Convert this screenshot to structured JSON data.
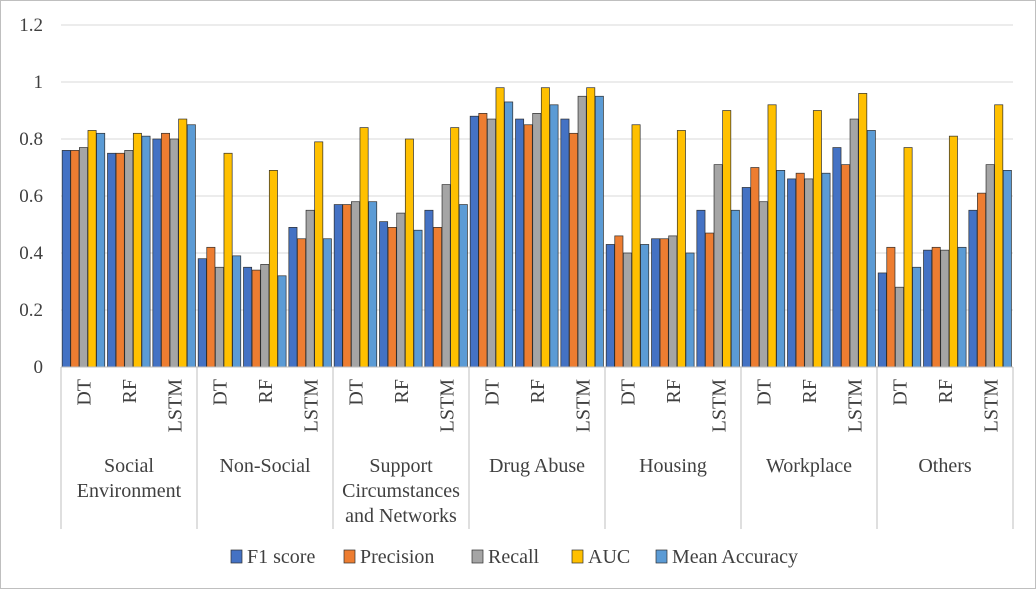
{
  "chart_data": {
    "type": "bar",
    "title": "",
    "xlabel": "",
    "ylabel": "",
    "ylim": [
      0,
      1.2
    ],
    "yticks": [
      "0",
      "0.2",
      "0.4",
      "0.6",
      "0.8",
      "1",
      "1.2"
    ],
    "grid": true,
    "legend_position": "bottom",
    "groups": [
      {
        "name": "Social Environment",
        "lines": [
          "Social",
          "Environment"
        ]
      },
      {
        "name": "Non-Social",
        "lines": [
          "Non-Social"
        ]
      },
      {
        "name": "Support Circumstances and Networks",
        "lines": [
          "Support",
          "Circumstances",
          "and Networks"
        ]
      },
      {
        "name": "Drug Abuse",
        "lines": [
          "Drug Abuse"
        ]
      },
      {
        "name": "Housing",
        "lines": [
          "Housing"
        ]
      },
      {
        "name": "Workplace",
        "lines": [
          "Workplace"
        ]
      },
      {
        "name": "Others",
        "lines": [
          "Others"
        ]
      }
    ],
    "models": [
      "DT",
      "RF",
      "LSTM"
    ],
    "series": [
      {
        "name": "F1 score",
        "color": "#4472C4",
        "values": [
          0.76,
          0.75,
          0.8,
          0.38,
          0.35,
          0.49,
          0.57,
          0.51,
          0.55,
          0.88,
          0.87,
          0.87,
          0.43,
          0.45,
          0.55,
          0.63,
          0.66,
          0.77,
          0.33,
          0.41,
          0.55
        ]
      },
      {
        "name": "Precision",
        "color": "#ED7D31",
        "values": [
          0.76,
          0.75,
          0.82,
          0.42,
          0.34,
          0.45,
          0.57,
          0.49,
          0.49,
          0.89,
          0.85,
          0.82,
          0.46,
          0.45,
          0.47,
          0.7,
          0.68,
          0.71,
          0.42,
          0.42,
          0.61
        ]
      },
      {
        "name": "Recall",
        "color": "#A5A5A5",
        "values": [
          0.77,
          0.76,
          0.8,
          0.35,
          0.36,
          0.55,
          0.58,
          0.54,
          0.64,
          0.87,
          0.89,
          0.95,
          0.4,
          0.46,
          0.71,
          0.58,
          0.66,
          0.87,
          0.28,
          0.41,
          0.71
        ]
      },
      {
        "name": "AUC",
        "color": "#FFC000",
        "values": [
          0.83,
          0.82,
          0.87,
          0.75,
          0.69,
          0.79,
          0.84,
          0.8,
          0.84,
          0.98,
          0.98,
          0.98,
          0.85,
          0.83,
          0.9,
          0.92,
          0.9,
          0.96,
          0.77,
          0.81,
          0.92
        ]
      },
      {
        "name": "Mean Accuracy",
        "color": "#5B9BD5",
        "values": [
          0.82,
          0.81,
          0.85,
          0.39,
          0.32,
          0.45,
          0.58,
          0.48,
          0.57,
          0.93,
          0.92,
          0.95,
          0.43,
          0.4,
          0.55,
          0.69,
          0.68,
          0.83,
          0.35,
          0.42,
          0.69
        ]
      }
    ]
  }
}
